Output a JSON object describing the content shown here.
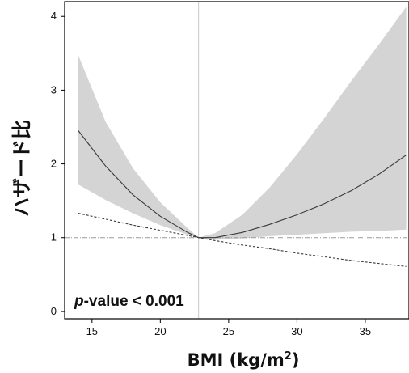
{
  "chart_data": {
    "type": "line",
    "xlabel": "BMI (kg/m²)",
    "xlabel_main": "BMI (kg/m",
    "xlabel_sup": "2",
    "xlabel_tail": ")",
    "ylabel": "ハザード比",
    "xlim": [
      13,
      38.2
    ],
    "ylim": [
      -0.1,
      4.2
    ],
    "x_ticks": [
      15,
      20,
      25,
      30,
      35
    ],
    "y_ticks": [
      0,
      1,
      2,
      3,
      4
    ],
    "annotation": {
      "italic": "p",
      "rest": "-value < 0.001"
    },
    "reference_x": 22.8,
    "reference_y": 1,
    "grid": false,
    "legend": "none",
    "series": [
      {
        "style": "solid",
        "x": [
          14,
          16,
          18,
          20,
          22,
          22.8,
          24,
          26,
          28,
          30,
          32,
          34,
          36,
          38
        ],
        "y": [
          2.45,
          1.97,
          1.58,
          1.29,
          1.07,
          1.0,
          1.0,
          1.07,
          1.18,
          1.31,
          1.46,
          1.64,
          1.86,
          2.12
        ]
      },
      {
        "style": "dashed",
        "x": [
          14,
          16,
          18,
          20,
          22,
          22.8,
          24,
          26,
          28,
          30,
          32,
          34,
          36,
          38
        ],
        "y": [
          1.33,
          1.25,
          1.17,
          1.1,
          1.03,
          1.0,
          0.96,
          0.9,
          0.85,
          0.79,
          0.74,
          0.69,
          0.65,
          0.61
        ]
      }
    ],
    "ci_band": {
      "x": [
        14,
        16,
        18,
        20,
        22,
        22.8,
        24,
        26,
        28,
        30,
        32,
        34,
        36,
        38
      ],
      "upper": [
        3.47,
        2.57,
        1.94,
        1.48,
        1.13,
        1.0,
        1.06,
        1.31,
        1.68,
        2.13,
        2.62,
        3.13,
        3.62,
        4.13
      ],
      "lower": [
        1.72,
        1.51,
        1.33,
        1.17,
        1.04,
        1.0,
        0.97,
        0.99,
        1.02,
        1.04,
        1.06,
        1.08,
        1.09,
        1.11
      ]
    },
    "colors": {
      "band": "#d4d4d4",
      "line": "#3a3a3a",
      "reference": "#9a9a9a",
      "axis": "#000000"
    }
  }
}
